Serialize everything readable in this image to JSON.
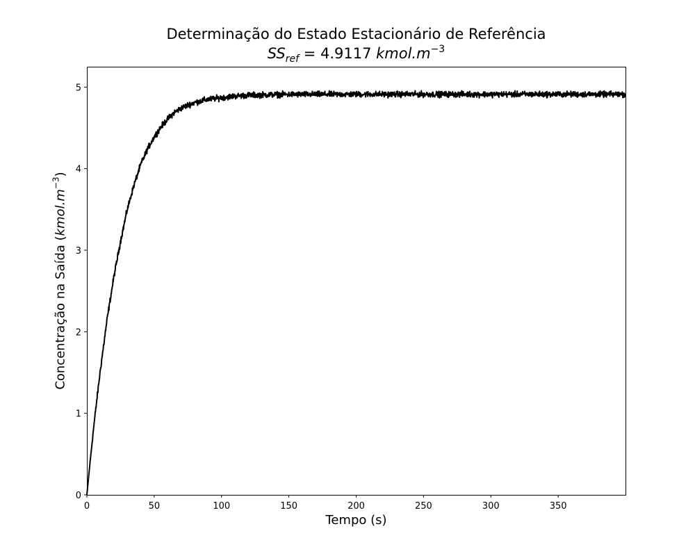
{
  "chart_data": {
    "type": "line",
    "title": "Determinação do Estado Estacionário de Referência",
    "subtitle": {
      "symbol": "SS",
      "subscript": "ref",
      "equals_value": " = 4.9117 ",
      "unit": "kmol.m",
      "unit_exponent": "−3"
    },
    "xlabel": "Tempo (s)",
    "ylabel": {
      "text": "Concentração na Saída (",
      "unit": "kmol.m",
      "unit_exponent": "−3",
      "close": ")"
    },
    "xlim": [
      0,
      400
    ],
    "ylim": [
      0,
      5.25
    ],
    "xticks": [
      0,
      50,
      100,
      150,
      200,
      250,
      300,
      350
    ],
    "yticks": [
      0,
      1,
      2,
      3,
      4,
      5
    ],
    "grid": false,
    "line_color": "#000000",
    "series": [
      {
        "x": [
          0,
          2,
          5,
          8,
          10,
          15,
          20,
          25,
          30,
          35,
          40,
          45,
          50,
          55,
          60,
          65,
          70,
          75,
          80,
          90,
          100,
          110,
          120,
          130,
          140,
          150,
          175,
          200,
          225,
          250,
          275,
          300,
          325,
          350,
          375,
          400
        ],
        "values": [
          0.0,
          0.34,
          0.82,
          1.25,
          1.53,
          2.15,
          2.67,
          3.11,
          3.5,
          3.8,
          4.05,
          4.24,
          4.39,
          4.51,
          4.61,
          4.69,
          4.74,
          4.78,
          4.81,
          4.85,
          4.87,
          4.89,
          4.9,
          4.905,
          4.908,
          4.91,
          4.911,
          4.912,
          4.912,
          4.912,
          4.912,
          4.912,
          4.912,
          4.912,
          4.912,
          4.912
        ],
        "noise_amplitude": 0.035
      }
    ]
  }
}
